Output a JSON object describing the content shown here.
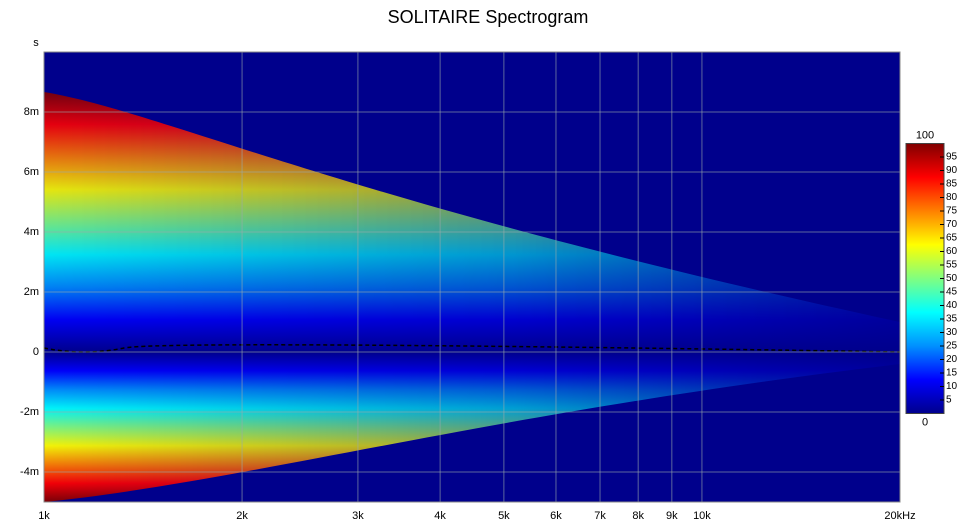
{
  "chart_data": {
    "type": "heatmap",
    "title": "SOLITAIRE Spectrogram",
    "y_label": "s",
    "x_log": true,
    "xlim": [
      1000,
      20000
    ],
    "xticks": [
      {
        "value": 1000,
        "label": "1k"
      },
      {
        "value": 2000,
        "label": "2k"
      },
      {
        "value": 3000,
        "label": "3k"
      },
      {
        "value": 4000,
        "label": "4k"
      },
      {
        "value": 5000,
        "label": "5k"
      },
      {
        "value": 6000,
        "label": "6k"
      },
      {
        "value": 7000,
        "label": "7k"
      },
      {
        "value": 8000,
        "label": "8k"
      },
      {
        "value": 9000,
        "label": "9k"
      },
      {
        "value": 10000,
        "label": "10k"
      },
      {
        "value": 20000,
        "label": "20kHz"
      }
    ],
    "ylim": [
      -0.005,
      0.01
    ],
    "yticks": [
      {
        "value": -0.004,
        "label": "-4m"
      },
      {
        "value": -0.002,
        "label": "-2m"
      },
      0,
      {
        "value": 0.002,
        "label": "2m"
      },
      {
        "value": 0.004,
        "label": "4m"
      },
      {
        "value": 0.006,
        "label": "6m"
      },
      {
        "value": 0.008,
        "label": "8m"
      }
    ],
    "grid": true,
    "colorbar_lim": [
      0,
      100
    ],
    "colorbar_ticks": [
      0,
      5,
      10,
      15,
      20,
      25,
      30,
      35,
      40,
      45,
      50,
      55,
      60,
      65,
      70,
      75,
      80,
      85,
      90,
      95,
      100
    ],
    "colormap": [
      "#00008c",
      "#0000ff",
      "#0090ff",
      "#00ffff",
      "#80ff80",
      "#ffff00",
      "#ff8000",
      "#ff0000",
      "#800000"
    ]
  }
}
